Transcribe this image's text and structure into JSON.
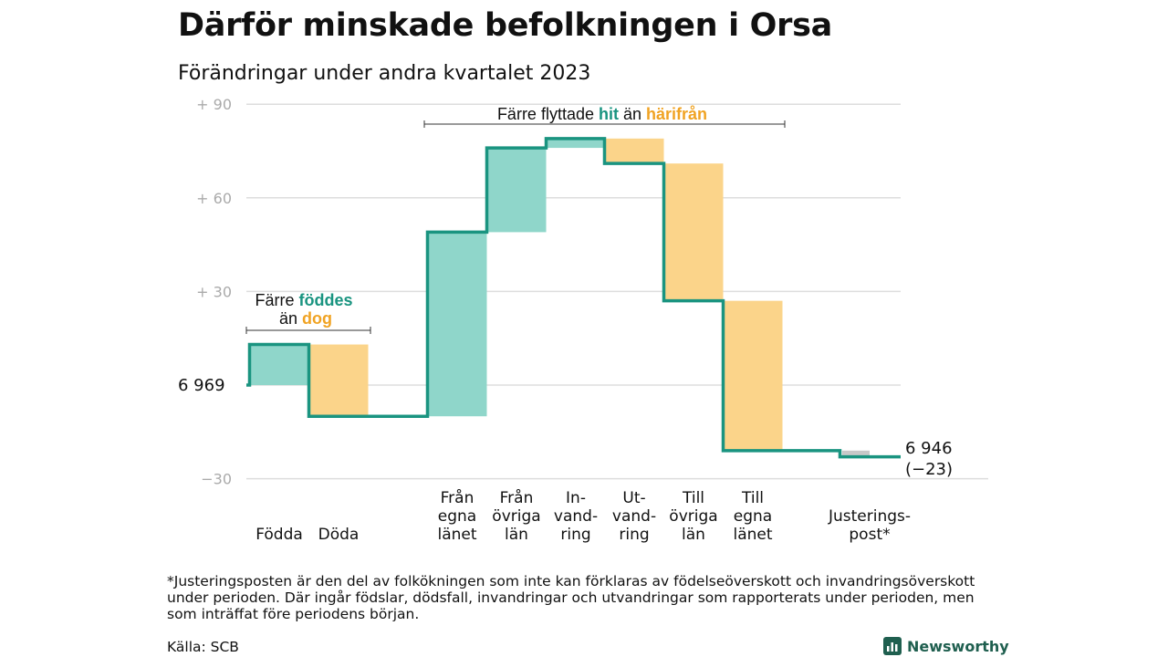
{
  "title": "Därför minskade befolkningen i Orsa",
  "subtitle": "Förändringar under andra kvartalet 2023",
  "colors": {
    "line": "#1a9480",
    "inflow": "#8fd6ca",
    "outflow": "#fbd48a",
    "adjustment": "#c8c8c8",
    "grid": "#dddddd",
    "axis_text": "#aaaaaa",
    "hit": "#1a9480",
    "harifran": "#f0a323"
  },
  "chart_data": {
    "type": "waterfall",
    "y_axis": {
      "ticks": [
        {
          "value": 90,
          "label": "+  90"
        },
        {
          "value": 60,
          "label": "+  60"
        },
        {
          "value": 30,
          "label": "+  30"
        },
        {
          "value": -30,
          "label": "−30"
        }
      ],
      "range": [
        -30,
        90
      ],
      "grid": true
    },
    "start_label": "6  969",
    "end_label": "6 946",
    "end_change_label": "(−23)",
    "steps": [
      {
        "label": "Födda",
        "value": 13,
        "kind": "in"
      },
      {
        "label": "Döda",
        "value": -23,
        "kind": "out"
      },
      {
        "label": "Från egna länet",
        "value": 59,
        "kind": "in"
      },
      {
        "label": "Från övriga län",
        "value": 27,
        "kind": "in"
      },
      {
        "label": "Invandring",
        "value": 3,
        "kind": "in"
      },
      {
        "label": "Utvandring",
        "value": -8,
        "kind": "out"
      },
      {
        "label": "Till övriga län",
        "value": -44,
        "kind": "out"
      },
      {
        "label": "Till egna länet",
        "value": -48,
        "kind": "out"
      },
      {
        "label": "Justeringspost*",
        "value": -2,
        "kind": "adj"
      }
    ],
    "annotations": {
      "births": {
        "pre": "Färre ",
        "hit": "föddes",
        "line2": "än ",
        "out": "dog"
      },
      "migration": {
        "pre": "Färre flyttade ",
        "hit": "hit",
        "mid": " än ",
        "out": "härifrån"
      }
    }
  },
  "footnote": "*Justeringsposten är den del av folkökningen som inte kan förklaras av födelseöverskott och invandringsöverskott under perioden. Där ingår födslar, dödsfall, invandringar och utvandringar som rapporterats under perioden, men som inträffat före periodens början.",
  "source": "Källa: SCB",
  "brand": "Newsworthy"
}
